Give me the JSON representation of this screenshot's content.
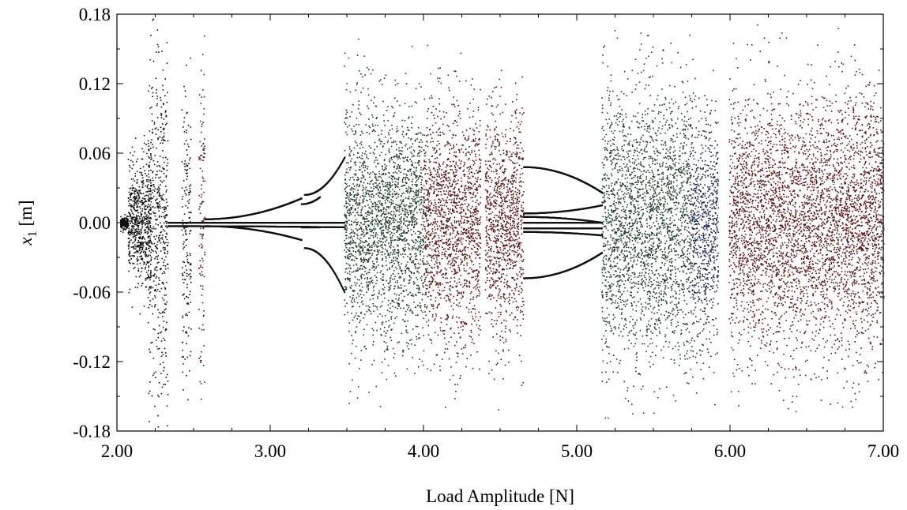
{
  "chart_data": {
    "type": "scatter",
    "title": "",
    "xlabel": "Load Amplitude [N]",
    "ylabel": {
      "symbol": "x",
      "subscript": "1",
      "unit": " [m]"
    },
    "xlim": [
      2.0,
      7.0
    ],
    "ylim": [
      -0.18,
      0.18
    ],
    "grid": false,
    "xticks": [
      "2.00",
      "3.00",
      "4.00",
      "5.00",
      "6.00",
      "7.00"
    ],
    "yticks": [
      "0.18",
      "0.12",
      "0.06",
      "0.00",
      "-0.06",
      "-0.12",
      "-0.18"
    ],
    "colors": {
      "black": "#111111",
      "green": "#1f3a2a",
      "navy": "#1a2550",
      "red": "#5a1414"
    },
    "chaotic_bands": [
      {
        "x": [
          2.02,
          2.07
        ],
        "amp": 0.006,
        "density": 1.0,
        "color": "black"
      },
      {
        "x": [
          2.07,
          2.22
        ],
        "amp": 0.06,
        "density": 1.0,
        "color": "black"
      },
      {
        "x": [
          2.2,
          2.33
        ],
        "amp": 0.17,
        "density": 0.9,
        "color": "black"
      },
      {
        "x": [
          2.42,
          2.48
        ],
        "amp": 0.17,
        "density": 0.7,
        "color": "black"
      },
      {
        "x": [
          2.53,
          2.57
        ],
        "amp": 0.16,
        "density": 0.7,
        "color": "red"
      },
      {
        "x": [
          3.48,
          4.0
        ],
        "amp": 0.12,
        "density": 1.0,
        "color": "green"
      },
      {
        "x": [
          4.0,
          4.37
        ],
        "amp": 0.12,
        "density": 1.0,
        "color": "red"
      },
      {
        "x": [
          4.4,
          4.65
        ],
        "amp": 0.12,
        "density": 1.0,
        "color": "red"
      },
      {
        "x": [
          5.16,
          5.75
        ],
        "amp": 0.14,
        "density": 1.0,
        "color": "green"
      },
      {
        "x": [
          5.75,
          5.92
        ],
        "amp": 0.12,
        "density": 1.0,
        "color": "navy"
      },
      {
        "x": [
          5.99,
          7.0
        ],
        "amp": 0.13,
        "density": 1.0,
        "color": "red"
      }
    ],
    "periodic_branches": [
      {
        "x": [
          2.33,
          3.48
        ],
        "y0": 0.0,
        "y1": 0.0
      },
      {
        "x": [
          2.33,
          3.48
        ],
        "y0": -0.003,
        "y1": -0.004
      },
      {
        "x": [
          2.57,
          3.2
        ],
        "y0": 0.003,
        "y1": 0.021
      },
      {
        "x": [
          3.22,
          3.48
        ],
        "y0": 0.024,
        "y1": 0.056
      },
      {
        "x": [
          2.57,
          3.2
        ],
        "y0": -0.003,
        "y1": -0.015
      },
      {
        "x": [
          3.22,
          3.48
        ],
        "y0": -0.022,
        "y1": -0.06
      },
      {
        "x": [
          3.2,
          3.32
        ],
        "y0": 0.016,
        "y1": 0.022
      },
      {
        "x": [
          3.2,
          3.32
        ],
        "y0": -0.004,
        "y1": -0.004
      },
      {
        "x": [
          4.65,
          5.16
        ],
        "y0": 0.048,
        "y1": 0.026
      },
      {
        "x": [
          4.65,
          5.16
        ],
        "y0": 0.008,
        "y1": 0.015
      },
      {
        "x": [
          4.65,
          5.16
        ],
        "y0": 0.0,
        "y1": 0.0
      },
      {
        "x": [
          4.65,
          5.16
        ],
        "y0": -0.008,
        "y1": -0.011
      },
      {
        "x": [
          4.65,
          5.16
        ],
        "y0": -0.048,
        "y1": -0.026
      },
      {
        "x": [
          4.65,
          5.16
        ],
        "y0": 0.005,
        "y1": 0.0
      },
      {
        "x": [
          4.65,
          5.16
        ],
        "y0": -0.005,
        "y1": -0.005
      }
    ]
  }
}
